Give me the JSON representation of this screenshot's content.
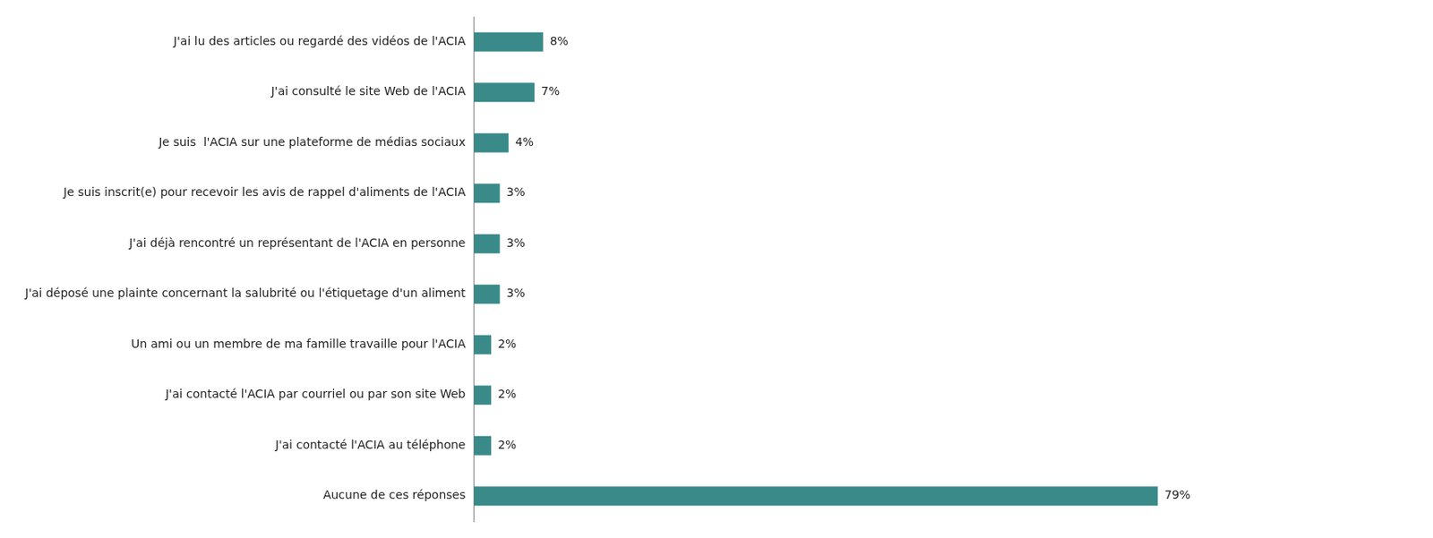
{
  "chart_data": {
    "type": "bar",
    "orientation": "horizontal",
    "categories": [
      "Aucune de ces réponses",
      "J'ai contacté l'ACIA au téléphone",
      "J'ai contacté l'ACIA par courriel ou par son site Web",
      "Un ami ou un membre de ma famille travaille pour l'ACIA",
      "J'ai déposé une plainte concernant la salubrité ou l'étiquetage d'un aliment",
      "J'ai déjà rencontré un représentant de l'ACIA en personne",
      "Je suis inscrit(e) pour recevoir les avis de rappel d'aliments de l'ACIA",
      "Je suis  l'ACIA sur une plateforme de médias sociaux",
      "J'ai consulté le site Web de l'ACIA",
      "J'ai lu des articles ou regardé des vidéos de l'ACIA"
    ],
    "values": [
      79,
      2,
      2,
      2,
      3,
      3,
      3,
      4,
      7,
      8
    ],
    "value_labels": [
      "79%",
      "2%",
      "2%",
      "2%",
      "3%",
      "3%",
      "3%",
      "4%",
      "7%",
      "8%"
    ],
    "data_labels": true,
    "color": "#3a8a8a",
    "xlim": [
      0,
      105
    ],
    "grid": false,
    "tick_labels": "y"
  }
}
